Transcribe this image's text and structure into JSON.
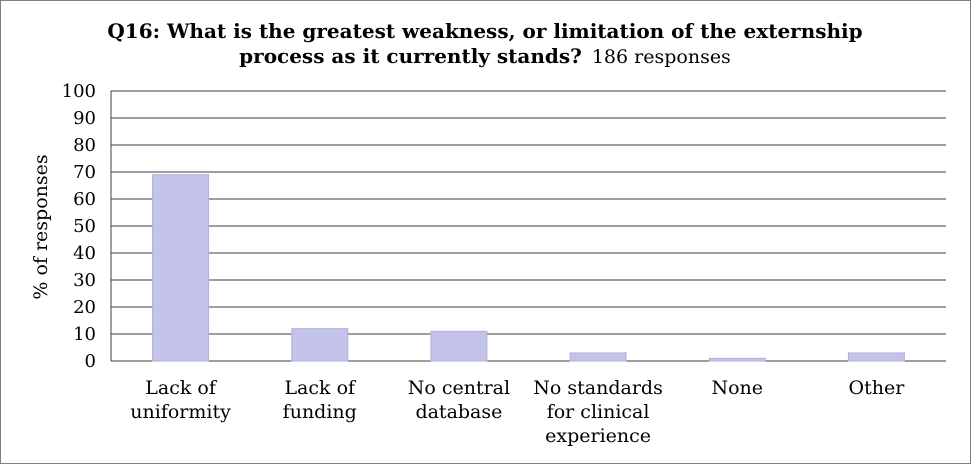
{
  "chart_data": {
    "type": "bar",
    "title_line1": "Q16: What is the greatest weakness, or limitation of the externship",
    "title_line2_bold": "process as it currently stands?",
    "title_line2_normal": "186 responses",
    "ylabel": "% of responses",
    "xlabel": "",
    "ylim": [
      0,
      100
    ],
    "yticks": [
      0,
      10,
      20,
      30,
      40,
      50,
      60,
      70,
      80,
      90,
      100
    ],
    "grid": true,
    "legend": "none",
    "categories": [
      [
        "Lack of",
        "uniformity"
      ],
      [
        "Lack of",
        "funding"
      ],
      [
        "No central",
        "database"
      ],
      [
        "No standards",
        "for clinical",
        "experience"
      ],
      [
        "None"
      ],
      [
        "Other"
      ]
    ],
    "values": [
      69,
      12,
      11,
      3,
      1,
      3
    ],
    "bar_color": "#c4c4ea",
    "bar_edge_color": "#b0b0dc",
    "grid_color": "#3c3c3c"
  }
}
